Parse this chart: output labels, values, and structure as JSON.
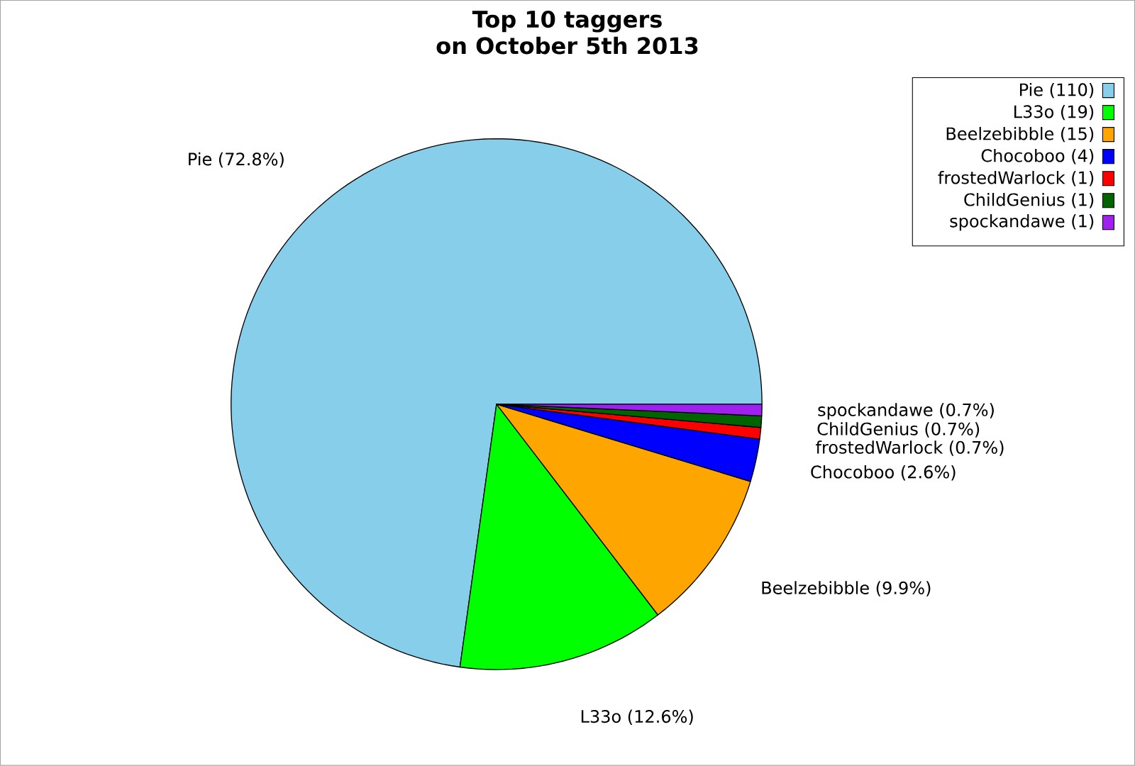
{
  "chart_data": {
    "type": "pie",
    "title": "Top 10 taggers",
    "subtitle": "on October 5th 2013",
    "categories": [
      "Pie (110)",
      "L33o (19)",
      "Beelzebibble (15)",
      "Chocoboo (4)",
      "frostedWarlock (1)",
      "ChildGenius (1)",
      "spockandawe (1)"
    ],
    "values": [
      72.8,
      12.6,
      9.9,
      2.6,
      0.7,
      0.7,
      0.7
    ],
    "colors": [
      "#87ceeb",
      "#00ff00",
      "#ffa500",
      "#0000ff",
      "#ff0000",
      "#006400",
      "#a020f0"
    ],
    "value_labels": [
      "Pie (72.8%)",
      "L33o (12.6%)",
      "Beelzebibble (9.9%)",
      "Chocoboo (2.6%)",
      "frostedWarlock (0.7%)",
      "ChildGenius (0.7%)",
      "spockandawe (0.7%)"
    ],
    "legend": "top right"
  }
}
